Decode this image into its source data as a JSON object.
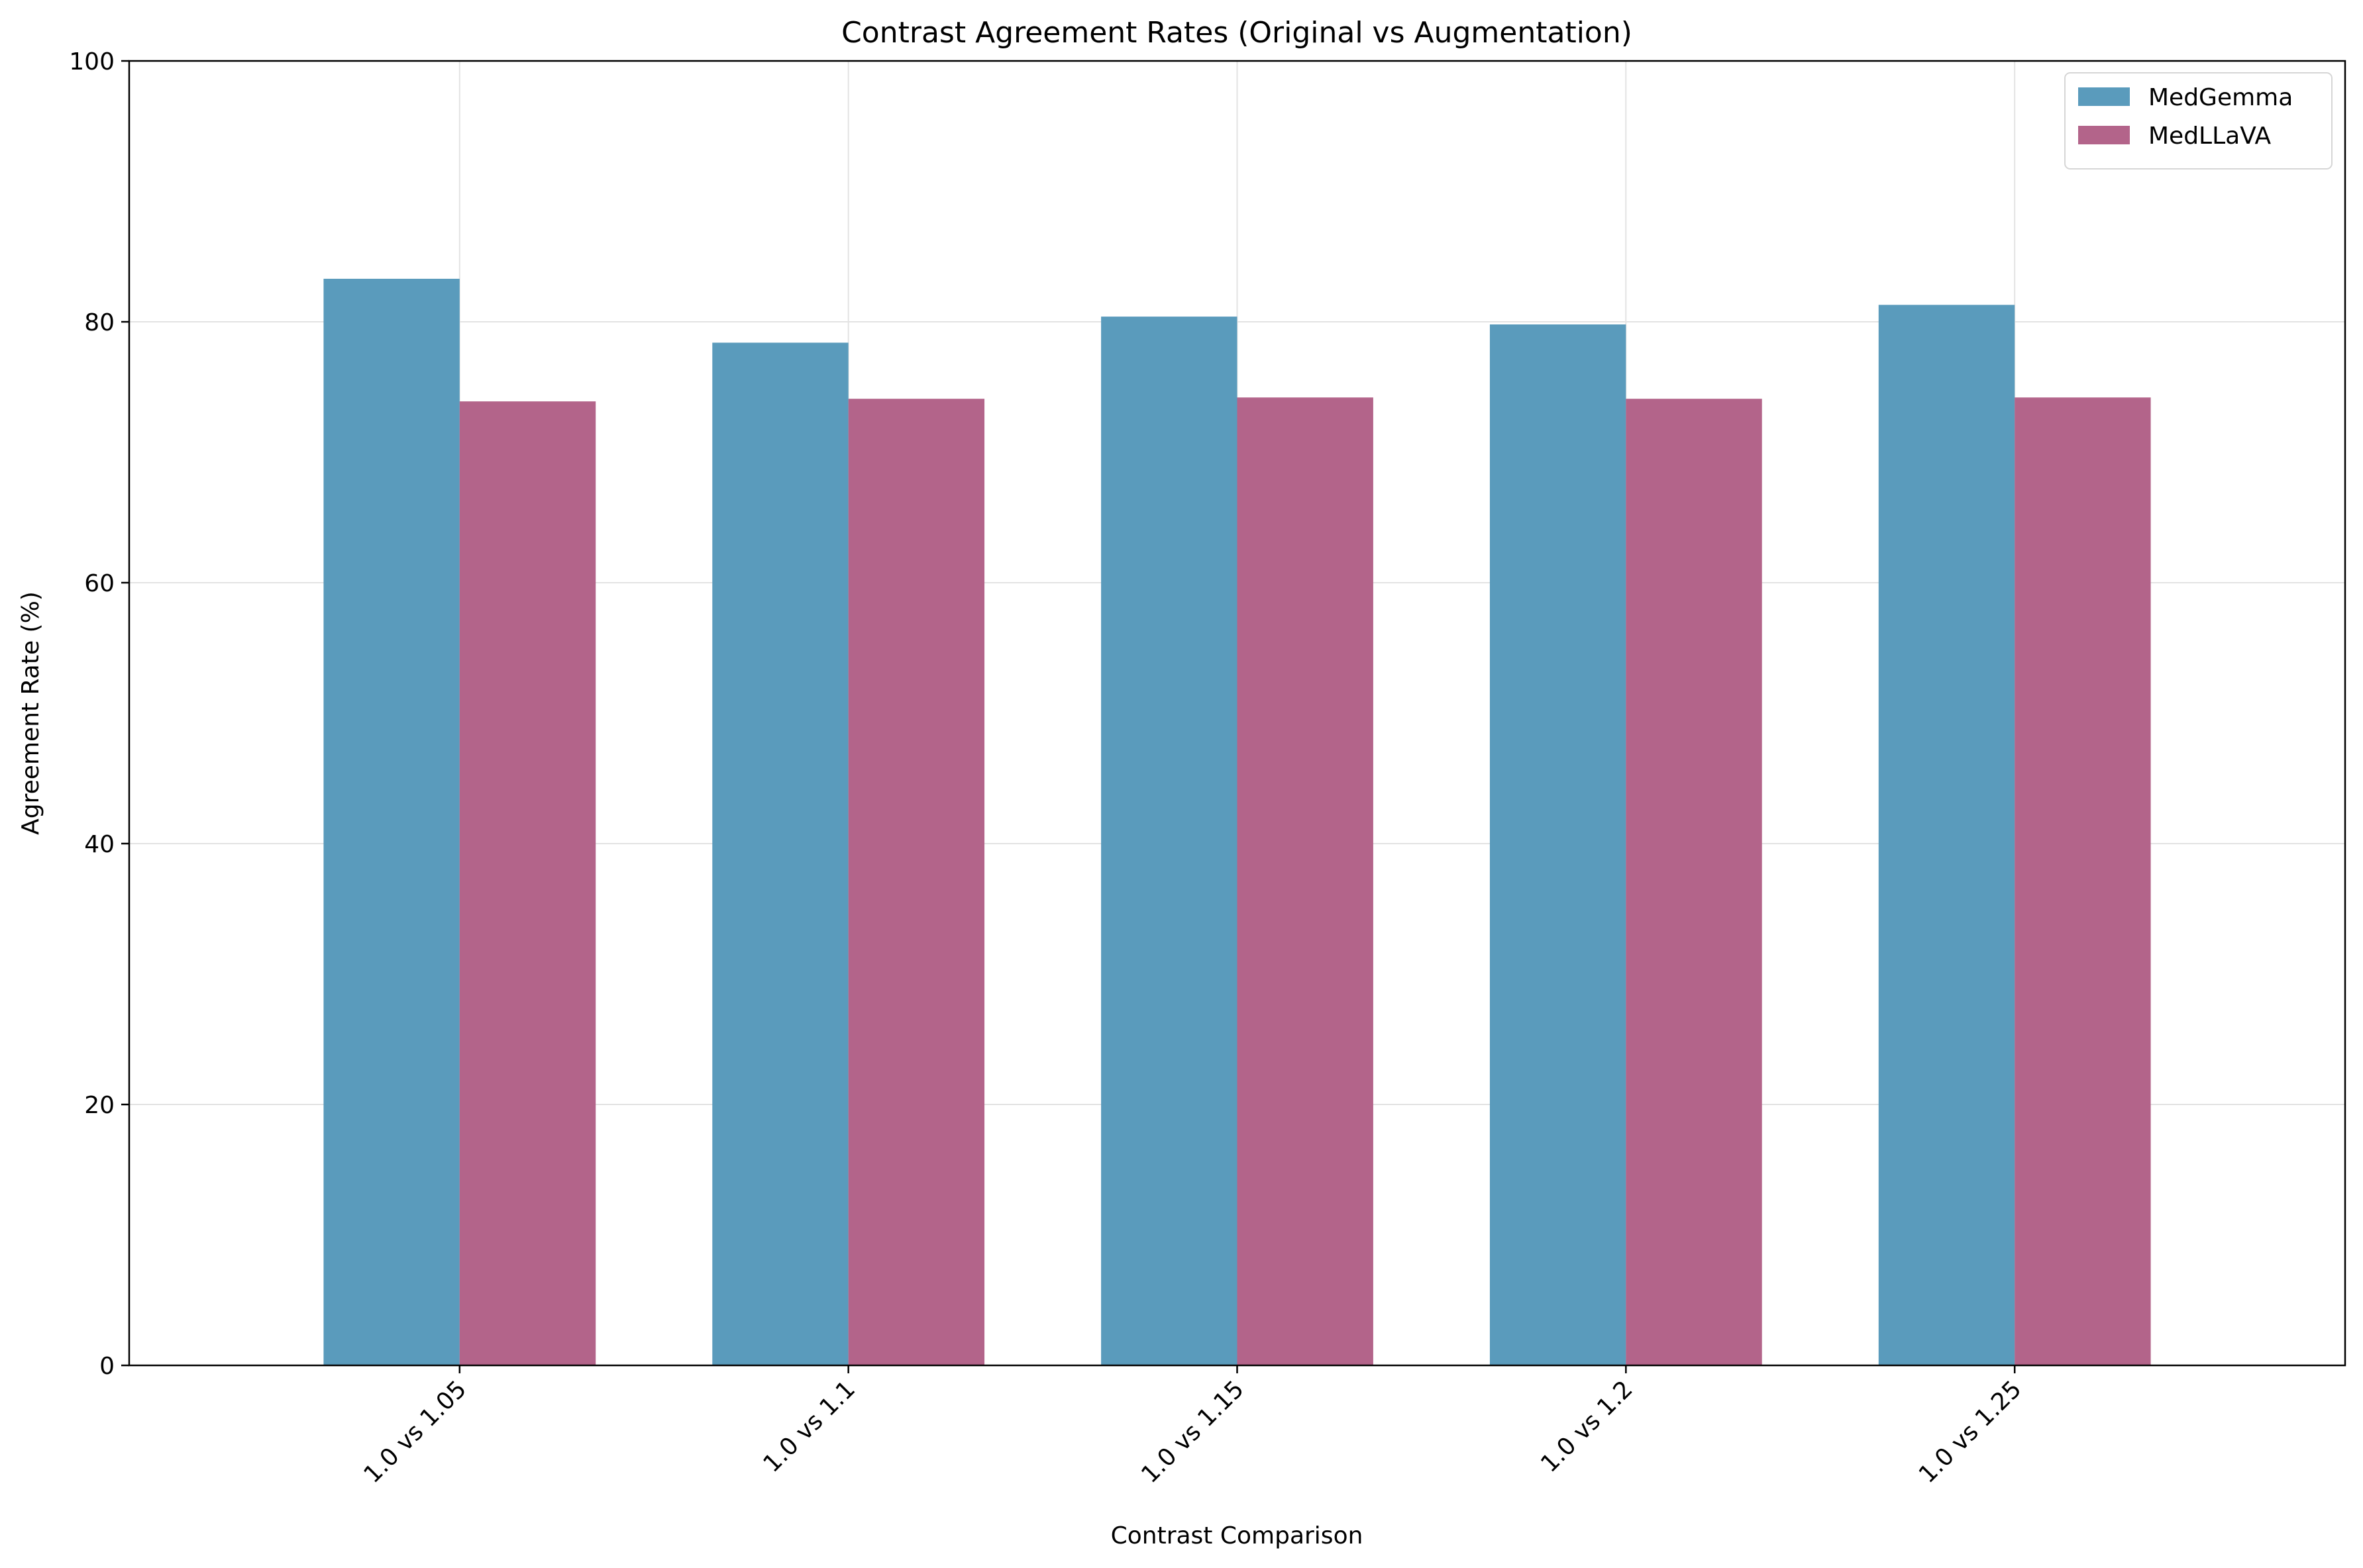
{
  "chart_data": {
    "type": "bar",
    "title": "Contrast Agreement Rates (Original vs Augmentation)",
    "xlabel": "Contrast Comparison",
    "ylabel": "Agreement Rate (%)",
    "categories": [
      "1.0 vs 1.05",
      "1.0 vs 1.1",
      "1.0 vs 1.15",
      "1.0 vs 1.2",
      "1.0 vs 1.25"
    ],
    "ylim": [
      0,
      100
    ],
    "yticks": [
      0,
      20,
      40,
      60,
      80,
      100
    ],
    "grid": true,
    "legend_position": "top-right",
    "series": [
      {
        "name": "MedGemma",
        "color": "#5a9bbc",
        "values": [
          83.3,
          78.4,
          80.4,
          79.8,
          81.3
        ]
      },
      {
        "name": "MedLLaVA",
        "color": "#b3648a",
        "values": [
          73.9,
          74.1,
          74.2,
          74.1,
          74.2
        ]
      }
    ]
  }
}
